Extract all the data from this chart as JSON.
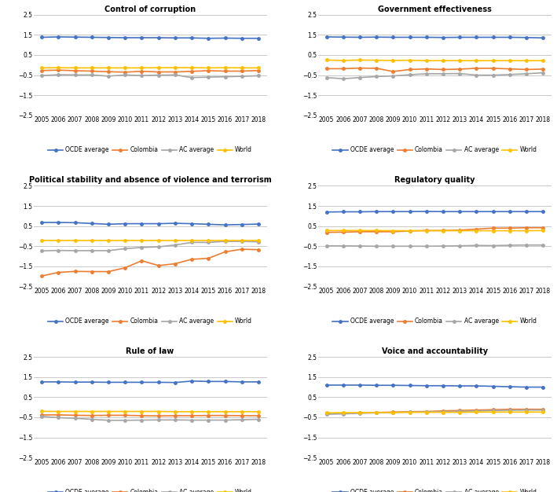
{
  "years": [
    2005,
    2006,
    2007,
    2008,
    2009,
    2010,
    2011,
    2012,
    2013,
    2014,
    2015,
    2016,
    2017,
    2018
  ],
  "subplots": [
    {
      "title": "Control of corruption",
      "series": {
        "OCDE average": [
          1.38,
          1.4,
          1.39,
          1.38,
          1.37,
          1.36,
          1.36,
          1.36,
          1.35,
          1.35,
          1.33,
          1.34,
          1.33,
          1.33
        ],
        "Colombia": [
          -0.27,
          -0.25,
          -0.28,
          -0.3,
          -0.33,
          -0.35,
          -0.31,
          -0.34,
          -0.34,
          -0.31,
          -0.28,
          -0.3,
          -0.3,
          -0.27
        ],
        "AC average": [
          -0.52,
          -0.48,
          -0.49,
          -0.49,
          -0.55,
          -0.49,
          -0.52,
          -0.5,
          -0.49,
          -0.62,
          -0.6,
          -0.58,
          -0.56,
          -0.53
        ],
        "World": [
          -0.14,
          -0.13,
          -0.14,
          -0.14,
          -0.14,
          -0.14,
          -0.14,
          -0.13,
          -0.13,
          -0.13,
          -0.14,
          -0.13,
          -0.14,
          -0.14
        ]
      }
    },
    {
      "title": "Government effectiveness",
      "series": {
        "OCDE average": [
          1.4,
          1.39,
          1.38,
          1.39,
          1.38,
          1.38,
          1.38,
          1.37,
          1.38,
          1.38,
          1.38,
          1.38,
          1.37,
          1.35
        ],
        "Colombia": [
          -0.18,
          -0.18,
          -0.15,
          -0.16,
          -0.32,
          -0.22,
          -0.19,
          -0.22,
          -0.2,
          -0.16,
          -0.16,
          -0.19,
          -0.22,
          -0.2
        ],
        "AC average": [
          -0.62,
          -0.68,
          -0.62,
          -0.57,
          -0.54,
          -0.48,
          -0.43,
          -0.43,
          -0.42,
          -0.5,
          -0.5,
          -0.47,
          -0.43,
          -0.38
        ],
        "World": [
          0.25,
          0.23,
          0.25,
          0.24,
          0.23,
          0.24,
          0.22,
          0.22,
          0.22,
          0.22,
          0.22,
          0.22,
          0.22,
          0.22
        ]
      }
    },
    {
      "title": "Political stability and absence of violence and terrorism",
      "series": {
        "OCDE average": [
          0.68,
          0.68,
          0.67,
          0.63,
          0.59,
          0.62,
          0.62,
          0.62,
          0.64,
          0.62,
          0.59,
          0.56,
          0.58,
          0.6
        ],
        "Colombia": [
          -1.98,
          -1.8,
          -1.75,
          -1.76,
          -1.76,
          -1.57,
          -1.22,
          -1.46,
          -1.37,
          -1.15,
          -1.1,
          -0.78,
          -0.65,
          -0.67
        ],
        "AC average": [
          -0.73,
          -0.71,
          -0.72,
          -0.72,
          -0.72,
          -0.62,
          -0.56,
          -0.53,
          -0.44,
          -0.31,
          -0.31,
          -0.26,
          -0.26,
          -0.28
        ],
        "World": [
          -0.22,
          -0.22,
          -0.22,
          -0.22,
          -0.22,
          -0.22,
          -0.22,
          -0.22,
          -0.22,
          -0.22,
          -0.22,
          -0.22,
          -0.22,
          -0.22
        ]
      }
    },
    {
      "title": "Regulatory quality",
      "series": {
        "OCDE average": [
          1.2,
          1.21,
          1.21,
          1.22,
          1.22,
          1.22,
          1.23,
          1.22,
          1.22,
          1.22,
          1.22,
          1.22,
          1.22,
          1.22
        ],
        "Colombia": [
          0.19,
          0.2,
          0.22,
          0.22,
          0.22,
          0.26,
          0.28,
          0.28,
          0.3,
          0.35,
          0.4,
          0.4,
          0.42,
          0.42
        ],
        "AC average": [
          -0.48,
          -0.48,
          -0.49,
          -0.5,
          -0.5,
          -0.5,
          -0.5,
          -0.49,
          -0.48,
          -0.46,
          -0.47,
          -0.45,
          -0.44,
          -0.44
        ],
        "World": [
          0.28,
          0.28,
          0.28,
          0.28,
          0.27,
          0.27,
          0.27,
          0.27,
          0.27,
          0.27,
          0.27,
          0.27,
          0.27,
          0.28
        ]
      }
    },
    {
      "title": "Rule of law",
      "series": {
        "OCDE average": [
          1.26,
          1.26,
          1.25,
          1.25,
          1.24,
          1.24,
          1.24,
          1.24,
          1.23,
          1.3,
          1.28,
          1.28,
          1.26,
          1.26
        ],
        "Colombia": [
          -0.38,
          -0.38,
          -0.4,
          -0.41,
          -0.4,
          -0.4,
          -0.42,
          -0.43,
          -0.42,
          -0.42,
          -0.41,
          -0.41,
          -0.42,
          -0.42
        ],
        "AC average": [
          -0.45,
          -0.52,
          -0.55,
          -0.6,
          -0.65,
          -0.65,
          -0.64,
          -0.63,
          -0.63,
          -0.64,
          -0.64,
          -0.64,
          -0.62,
          -0.6
        ],
        "World": [
          -0.2,
          -0.21,
          -0.21,
          -0.21,
          -0.21,
          -0.21,
          -0.21,
          -0.21,
          -0.22,
          -0.22,
          -0.22,
          -0.22,
          -0.22,
          -0.22
        ]
      }
    },
    {
      "title": "Voice and accountability",
      "series": {
        "OCDE average": [
          1.1,
          1.1,
          1.1,
          1.09,
          1.09,
          1.08,
          1.07,
          1.07,
          1.06,
          1.06,
          1.04,
          1.02,
          1.0,
          1.0
        ],
        "Colombia": [
          -0.3,
          -0.31,
          -0.28,
          -0.26,
          -0.24,
          -0.22,
          -0.21,
          -0.18,
          -0.16,
          -0.14,
          -0.12,
          -0.1,
          -0.1,
          -0.1
        ],
        "AC average": [
          -0.35,
          -0.33,
          -0.3,
          -0.28,
          -0.26,
          -0.24,
          -0.23,
          -0.22,
          -0.2,
          -0.18,
          -0.16,
          -0.15,
          -0.14,
          -0.14
        ],
        "World": [
          -0.28,
          -0.27,
          -0.27,
          -0.26,
          -0.26,
          -0.25,
          -0.25,
          -0.25,
          -0.25,
          -0.24,
          -0.24,
          -0.24,
          -0.24,
          -0.24
        ]
      }
    }
  ],
  "colors": {
    "OCDE average": "#4472C4",
    "Colombia": "#ED7D31",
    "AC average": "#A6A6A6",
    "World": "#FFC000"
  },
  "ylim": [
    -2.5,
    2.5
  ],
  "yticks": [
    -2.5,
    -1.5,
    -0.5,
    0.5,
    1.5,
    2.5
  ],
  "legend_order": [
    "OCDE average",
    "Colombia",
    "AC average",
    "World"
  ],
  "background_color": "#FFFFFF"
}
